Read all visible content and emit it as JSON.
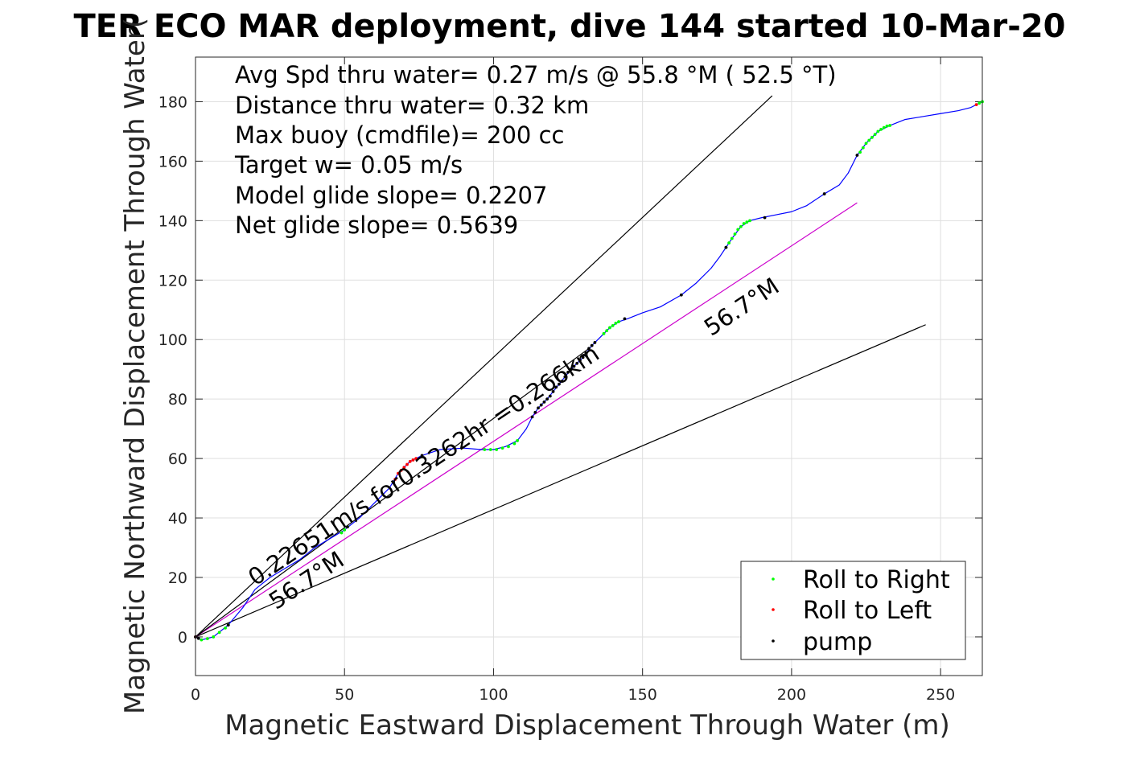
{
  "chart_data": {
    "type": "line",
    "title": "TER ECO MAR deployment, dive 144 started 10-Mar-20",
    "xlabel": "Magnetic Eastward Displacement Through Water (m)",
    "ylabel": "Magnetic Northward Displacement Through Water(",
    "xlim": [
      0,
      264
    ],
    "ylim": [
      -13,
      195
    ],
    "xticks": [
      0,
      50,
      100,
      150,
      200,
      250
    ],
    "yticks": [
      0,
      20,
      40,
      60,
      80,
      100,
      120,
      140,
      160,
      180
    ],
    "xtick_labels": [
      "0",
      "50",
      "100",
      "150",
      "200",
      "250"
    ],
    "ytick_labels": [
      "0",
      "20",
      "40",
      "60",
      "80",
      "100",
      "120",
      "140",
      "160",
      "180"
    ],
    "grid": true,
    "legend_position": "bottom-right",
    "stats_lines": [
      "Avg Spd thru water=  0.27 m/s @  55.8 °M ( 52.5 °T)",
      "Distance thru water=  0.32 km",
      "Max buoy (cmdfile)= 200 cc",
      "Target w= 0.05 m/s",
      "Model glide slope= 0.2207",
      "Net glide slope= 0.5639"
    ],
    "annotations": [
      {
        "text": "0.22651m/s for0.3262hr =0.266km",
        "x": 20,
        "y": 17,
        "rotation_deg": -33.5
      },
      {
        "text": "56.7°M",
        "x": 27,
        "y": 9,
        "rotation_deg": -33.5
      },
      {
        "text": "56.7°M",
        "x": 173,
        "y": 101,
        "rotation_deg": -33.5
      }
    ],
    "track": {
      "name": "track",
      "color": "#0000ff",
      "points": [
        [
          0,
          0
        ],
        [
          2,
          -1
        ],
        [
          6,
          0
        ],
        [
          11,
          4
        ],
        [
          16,
          10
        ],
        [
          20,
          16
        ],
        [
          25,
          20
        ],
        [
          30,
          23
        ],
        [
          35,
          26
        ],
        [
          40,
          30
        ],
        [
          45,
          33
        ],
        [
          50,
          36
        ],
        [
          55,
          40
        ],
        [
          60,
          45
        ],
        [
          65,
          50
        ],
        [
          68,
          55
        ],
        [
          72,
          59
        ],
        [
          76,
          61
        ],
        [
          82,
          63
        ],
        [
          90,
          63.5
        ],
        [
          96,
          63
        ],
        [
          100,
          63
        ],
        [
          104,
          64
        ],
        [
          108,
          66
        ],
        [
          111,
          70
        ],
        [
          113,
          74
        ],
        [
          115,
          77
        ],
        [
          118,
          80
        ],
        [
          122,
          85
        ],
        [
          126,
          90
        ],
        [
          130,
          94
        ],
        [
          133,
          98
        ],
        [
          136,
          101
        ],
        [
          139,
          104
        ],
        [
          142,
          106
        ],
        [
          145,
          107
        ],
        [
          150,
          109
        ],
        [
          156,
          111
        ],
        [
          163,
          115
        ],
        [
          168,
          119
        ],
        [
          173,
          124
        ],
        [
          176,
          128
        ],
        [
          178,
          131
        ],
        [
          180,
          134
        ],
        [
          183,
          138
        ],
        [
          186,
          140
        ],
        [
          190,
          141
        ],
        [
          195,
          142
        ],
        [
          200,
          143
        ],
        [
          205,
          145
        ],
        [
          211,
          149
        ],
        [
          216,
          152
        ],
        [
          219,
          156
        ],
        [
          222,
          162
        ],
        [
          225,
          166
        ],
        [
          229,
          170
        ],
        [
          233,
          172
        ],
        [
          238,
          174
        ],
        [
          244,
          175
        ],
        [
          250,
          176
        ],
        [
          256,
          177
        ],
        [
          260,
          178
        ],
        [
          264,
          180
        ]
      ]
    },
    "markers": {
      "roll_right": {
        "name": "Roll to Right",
        "color": "#00ff00",
        "points": [
          [
            2,
            -1
          ],
          [
            4,
            -0.6
          ],
          [
            6,
            0
          ],
          [
            8,
            1.5
          ],
          [
            10,
            3
          ],
          [
            11,
            4
          ],
          [
            49,
            35
          ],
          [
            50,
            36
          ],
          [
            51,
            37
          ],
          [
            97,
            63
          ],
          [
            99,
            63
          ],
          [
            101,
            63
          ],
          [
            103,
            63.5
          ],
          [
            105,
            64
          ],
          [
            107,
            65
          ],
          [
            108,
            66
          ],
          [
            137,
            102
          ],
          [
            138,
            103
          ],
          [
            139,
            104
          ],
          [
            140,
            104.7
          ],
          [
            141,
            105.5
          ],
          [
            142,
            106
          ],
          [
            178,
            131
          ],
          [
            179,
            132.5
          ],
          [
            180,
            134
          ],
          [
            181,
            135.5
          ],
          [
            182,
            137
          ],
          [
            183,
            138
          ],
          [
            184,
            139
          ],
          [
            185,
            139.5
          ],
          [
            186,
            140
          ],
          [
            223,
            163
          ],
          [
            224,
            164.5
          ],
          [
            225,
            166
          ],
          [
            226,
            167
          ],
          [
            227,
            168
          ],
          [
            228,
            169
          ],
          [
            229,
            170
          ],
          [
            230,
            170.7
          ],
          [
            231,
            171.3
          ],
          [
            232,
            171.8
          ],
          [
            233,
            172
          ],
          [
            263,
            179.5
          ],
          [
            264,
            180
          ]
        ]
      },
      "roll_left": {
        "name": "Roll to Left",
        "color": "#ff0000",
        "points": [
          [
            0,
            0
          ],
          [
            67,
            53
          ],
          [
            68,
            55
          ],
          [
            69,
            56
          ],
          [
            70,
            57
          ],
          [
            71,
            58
          ],
          [
            72,
            59
          ],
          [
            73,
            59.5
          ],
          [
            74,
            60
          ],
          [
            262,
            179
          ]
        ]
      },
      "pump": {
        "name": "pump",
        "color": "#000000",
        "points": [
          [
            0,
            0
          ],
          [
            1,
            -0.5
          ],
          [
            11,
            4
          ],
          [
            51,
            37
          ],
          [
            76,
            61
          ],
          [
            113,
            74
          ],
          [
            114,
            75.5
          ],
          [
            115,
            77
          ],
          [
            116,
            78
          ],
          [
            117,
            79
          ],
          [
            118,
            80
          ],
          [
            119,
            81
          ],
          [
            120,
            82.5
          ],
          [
            121,
            84
          ],
          [
            122,
            85
          ],
          [
            123,
            86
          ],
          [
            124,
            87.5
          ],
          [
            125,
            89
          ],
          [
            126,
            90
          ],
          [
            127,
            91
          ],
          [
            128,
            92
          ],
          [
            129,
            93
          ],
          [
            130,
            94
          ],
          [
            131,
            95.5
          ],
          [
            132,
            97
          ],
          [
            133,
            98
          ],
          [
            134,
            99
          ],
          [
            144,
            107
          ],
          [
            163,
            115
          ],
          [
            178,
            131
          ],
          [
            191,
            141
          ],
          [
            211,
            149
          ],
          [
            222,
            162
          ]
        ]
      }
    },
    "reference_lines": [
      {
        "name": "upper envelope",
        "color": "#000000",
        "points": [
          [
            0,
            0
          ],
          [
            193.5,
            182
          ]
        ]
      },
      {
        "name": "lower envelope",
        "color": "#000000",
        "points": [
          [
            0,
            0
          ],
          [
            245,
            105
          ]
        ]
      },
      {
        "name": "heading line",
        "color": "#cc00cc",
        "points": [
          [
            0,
            0
          ],
          [
            222,
            146
          ]
        ]
      },
      {
        "name": "net displacement",
        "color": "#000000",
        "points": [
          [
            0,
            0
          ],
          [
            132,
            97
          ]
        ]
      }
    ],
    "legend": [
      {
        "label": "Roll to Right",
        "color": "#00ff00"
      },
      {
        "label": "Roll to Left",
        "color": "#ff0000"
      },
      {
        "label": "pump",
        "color": "#000000"
      }
    ]
  }
}
